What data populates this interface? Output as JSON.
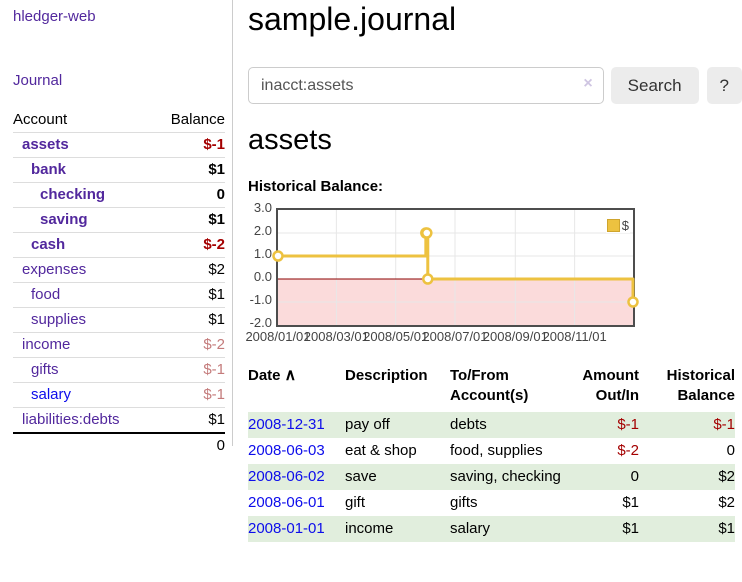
{
  "colors": {
    "link_visited": "#52289d",
    "link_unvisited": "#0d0deb",
    "negative": "#a40000",
    "negative_muted": "#c47b7b",
    "row_highlight": "#e1eedd",
    "chart_line": "#edc240",
    "chart_zero_line": "#8b0000",
    "chart_negative_fill": "#fbdbdb",
    "chart_grid": "#e7e7e7"
  },
  "icons": {
    "clear_search": "×",
    "sort_asc": "∧",
    "legend_swatch": "dollar-series-swatch"
  },
  "app": {
    "brand": "hledger-web",
    "nav_journal": "Journal"
  },
  "sidebar": {
    "header": {
      "account": "Account",
      "balance": "Balance"
    },
    "accounts": [
      {
        "label": "assets",
        "balance": "$-1",
        "indent": 1,
        "emphasis": true,
        "balance_tone": "neg"
      },
      {
        "label": "bank",
        "balance": "$1",
        "indent": 2,
        "emphasis": true,
        "balance_tone": ""
      },
      {
        "label": "checking",
        "balance": "0",
        "indent": 3,
        "emphasis": true,
        "balance_tone": ""
      },
      {
        "label": "saving",
        "balance": "$1",
        "indent": 3,
        "emphasis": true,
        "balance_tone": ""
      },
      {
        "label": "cash",
        "balance": "$-2",
        "indent": 2,
        "emphasis": true,
        "balance_tone": "neg"
      },
      {
        "label": "expenses",
        "balance": "$2",
        "indent": 1,
        "emphasis": false,
        "balance_tone": ""
      },
      {
        "label": "food",
        "balance": "$1",
        "indent": 2,
        "emphasis": false,
        "balance_tone": ""
      },
      {
        "label": "supplies",
        "balance": "$1",
        "indent": 2,
        "emphasis": false,
        "balance_tone": ""
      },
      {
        "label": "income",
        "balance": "$-2",
        "indent": 1,
        "emphasis": false,
        "balance_tone": "neg-muted"
      },
      {
        "label": "gifts",
        "balance": "$-1",
        "indent": 2,
        "emphasis": false,
        "balance_tone": "neg-muted"
      },
      {
        "label": "salary",
        "balance": "$-1",
        "indent": 2,
        "emphasis": false,
        "balance_tone": "neg-muted",
        "link_style": "unvisited"
      },
      {
        "label": "liabilities:debts",
        "balance": "$1",
        "indent": 1,
        "emphasis": false,
        "balance_tone": ""
      }
    ],
    "total": "0"
  },
  "header": {
    "title": "sample.journal"
  },
  "search": {
    "value": "inacct:assets",
    "button": "Search",
    "help_button": "?"
  },
  "account_page": {
    "heading": "assets",
    "chart_label": "Historical Balance:"
  },
  "chart_data": {
    "type": "line",
    "style": "step",
    "title": "Historical Balance:",
    "legend": {
      "position": "top-right",
      "entries": [
        "$"
      ]
    },
    "xlim": [
      "2008-01-01",
      "2008-12-31"
    ],
    "ylim": [
      -2,
      3
    ],
    "y_ticks": [
      3.0,
      2.0,
      1.0,
      0.0,
      -1.0,
      -2.0
    ],
    "y_tick_labels": [
      "3.0",
      "2.0",
      "1.0",
      "0.0",
      "-1.0",
      "-2.0"
    ],
    "x_tick_labels": [
      "2008/01/01",
      "2008/03/01",
      "2008/05/01",
      "2008/07/01",
      "2008/09/01",
      "2008/11/01"
    ],
    "grid": true,
    "zero_line": true,
    "negative_region_shaded": true,
    "series": [
      {
        "name": "$",
        "points": [
          [
            "2008-01-01",
            1
          ],
          [
            "2008-06-01",
            2
          ],
          [
            "2008-06-02",
            2
          ],
          [
            "2008-06-03",
            0
          ],
          [
            "2008-12-31",
            -1
          ]
        ]
      }
    ]
  },
  "register": {
    "columns": [
      {
        "label": "Date",
        "sorted": "asc"
      },
      {
        "label": "Description"
      },
      {
        "label": "To/From Account(s)"
      },
      {
        "label": "Amount Out/In"
      },
      {
        "label": "Historical Balance"
      }
    ],
    "rows": [
      {
        "date": "2008-12-31",
        "description": "pay off",
        "accounts": "debts",
        "amount": "$-1",
        "amount_negative": true,
        "balance": "$-1",
        "balance_negative": true,
        "highlight": true
      },
      {
        "date": "2008-06-03",
        "description": "eat & shop",
        "accounts": "food, supplies",
        "amount": "$-2",
        "amount_negative": true,
        "balance": "0",
        "balance_negative": false,
        "highlight": false
      },
      {
        "date": "2008-06-02",
        "description": "save",
        "accounts": "saving, checking",
        "amount": "0",
        "amount_negative": false,
        "balance": "$2",
        "balance_negative": false,
        "highlight": true
      },
      {
        "date": "2008-06-01",
        "description": "gift",
        "accounts": "gifts",
        "amount": "$1",
        "amount_negative": false,
        "balance": "$2",
        "balance_negative": false,
        "highlight": false
      },
      {
        "date": "2008-01-01",
        "description": "income",
        "accounts": "salary",
        "amount": "$1",
        "amount_negative": false,
        "balance": "$1",
        "balance_negative": false,
        "highlight": true
      }
    ]
  }
}
